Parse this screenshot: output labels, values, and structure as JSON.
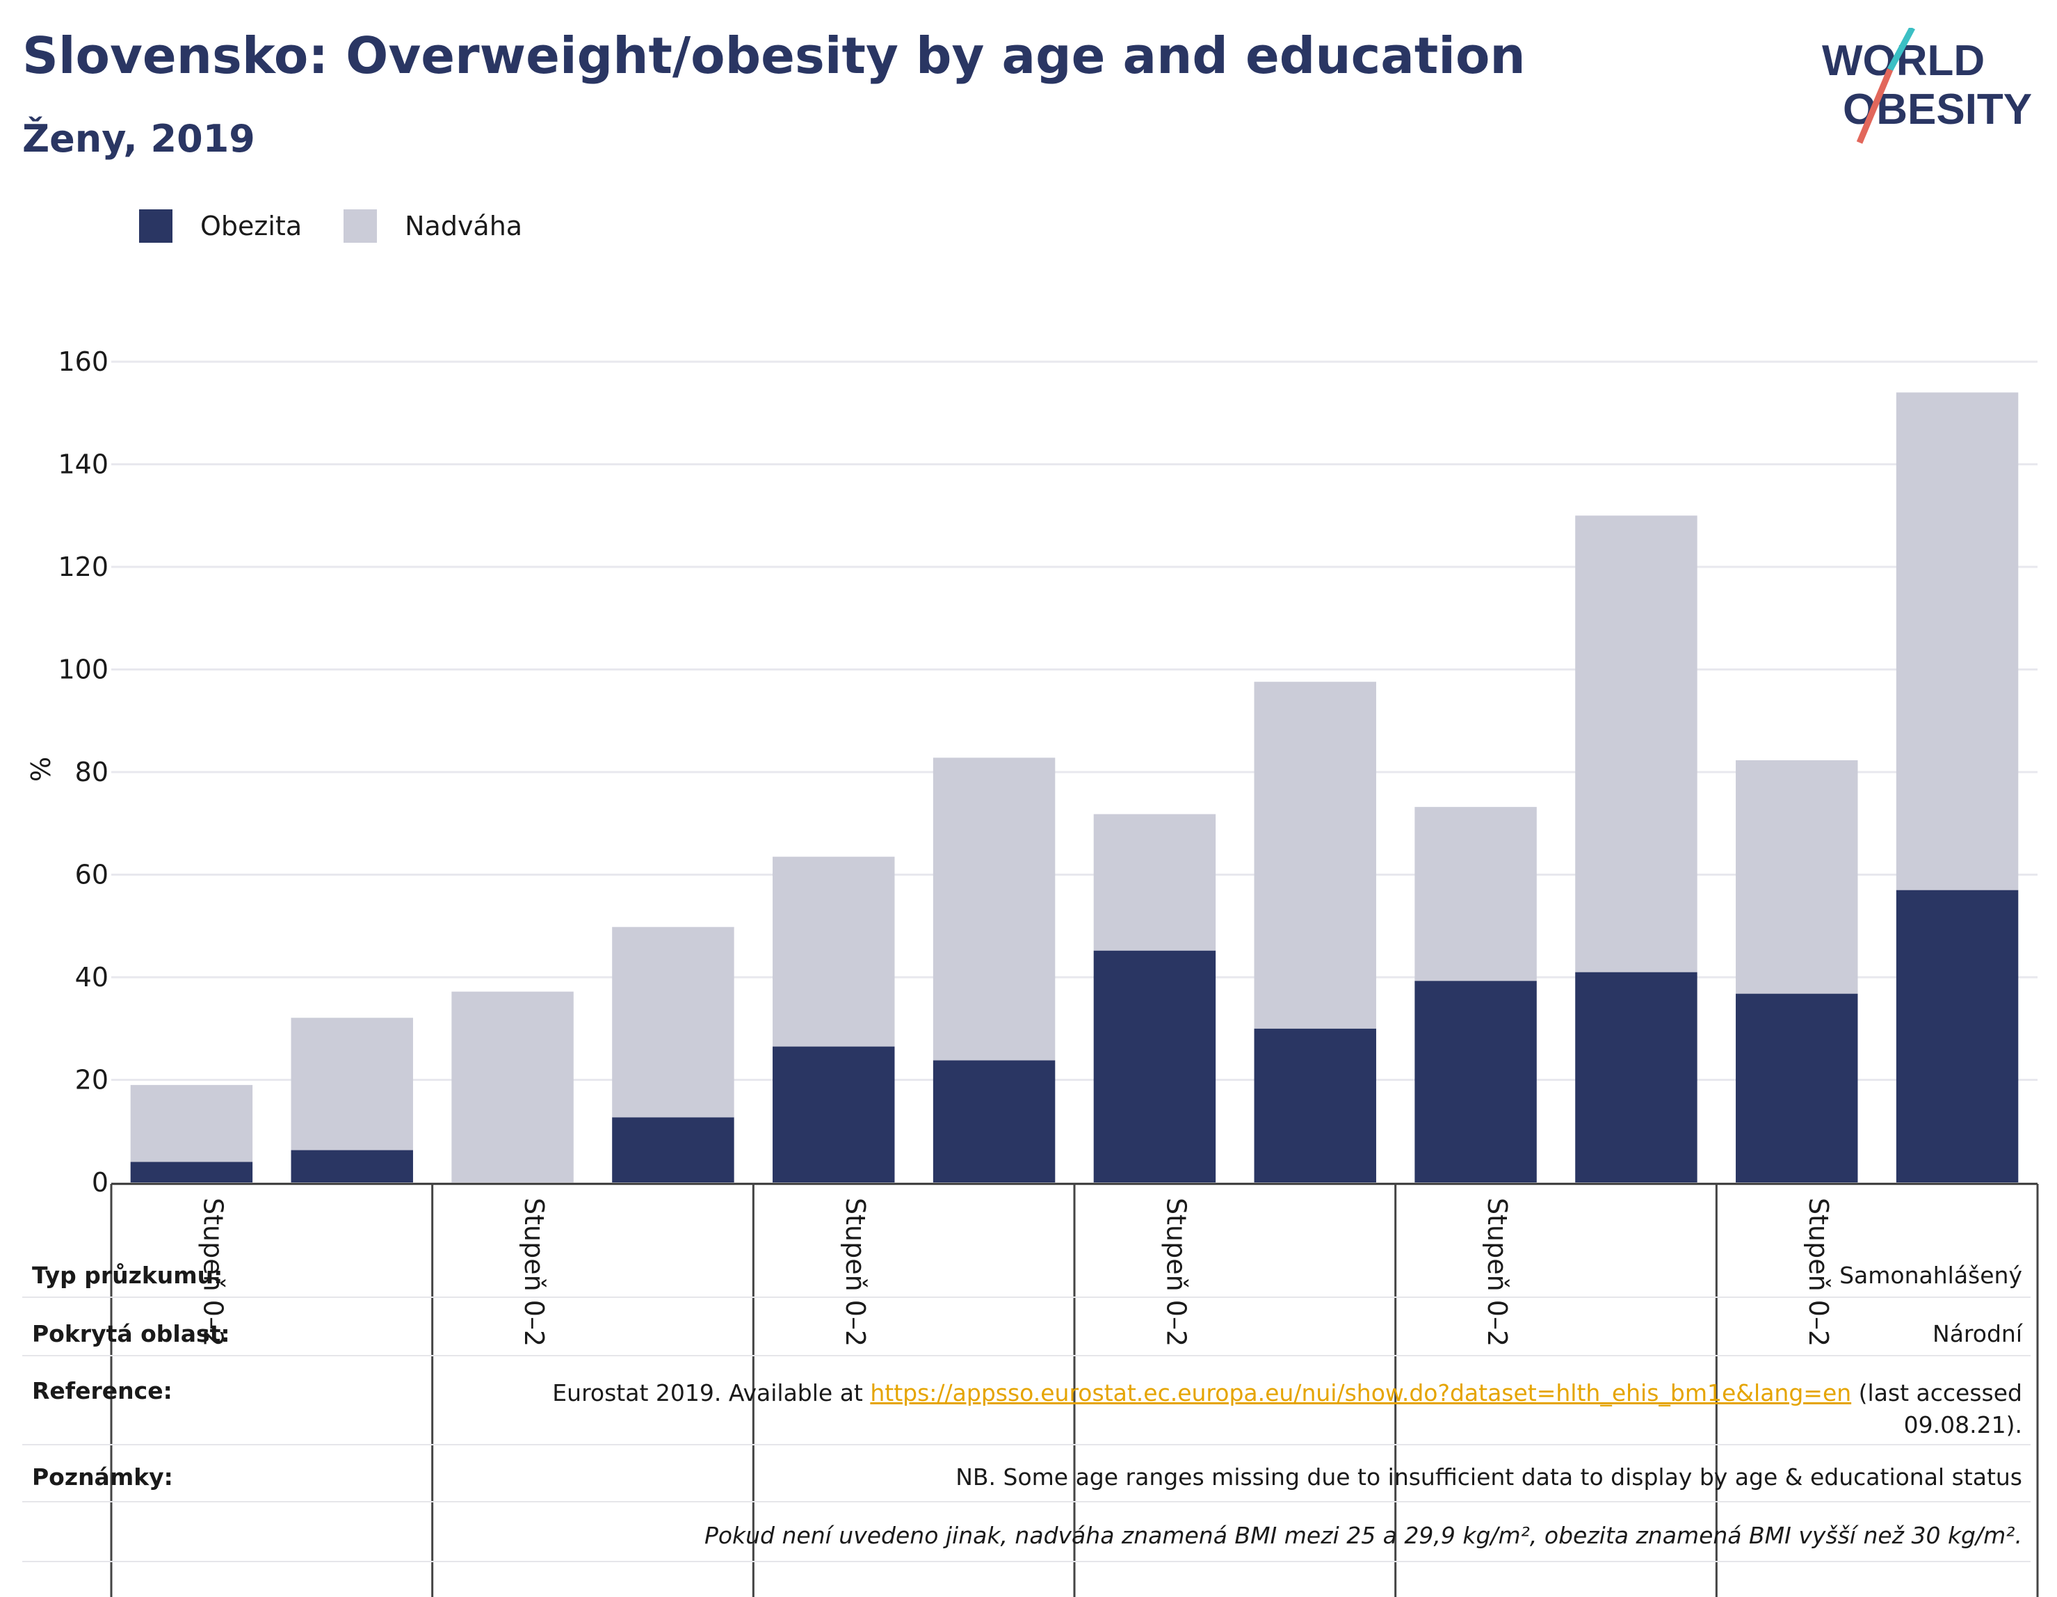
{
  "header": {
    "title": "Slovensko: Overweight/obesity by age and education",
    "subtitle": "Ženy, 2019"
  },
  "logo": {
    "line1": "WORLD",
    "line2": "OBESITY"
  },
  "colors": {
    "obesity": "#2a3663",
    "overweight": "#cbccd8",
    "title": "#2a3663",
    "link": "#e5a400",
    "logo_teal": "#3bbfc4",
    "logo_red": "#e2675b"
  },
  "chart_data": {
    "type": "bar",
    "stacked": true,
    "ylabel": "%",
    "ylim": [
      0,
      160
    ],
    "yticks": [
      0,
      20,
      40,
      60,
      80,
      100,
      120,
      140,
      160
    ],
    "grid": true,
    "legend_position": "top-left",
    "category_labels": [
      "Stupeň 0–2",
      "Stupeň 0–2",
      "Stupeň 0–2",
      "Stupeň 0–2",
      "Stupeň 0–2",
      "Stupeň 0–2"
    ],
    "bar_count": 12,
    "series": [
      {
        "name": "Obezita",
        "values": [
          4,
          6.3,
          0,
          12.7,
          26.5,
          23.8,
          45.2,
          30,
          39.3,
          41,
          36.8,
          57
        ]
      },
      {
        "name": "Nadváha",
        "values": [
          15,
          25.8,
          37.2,
          37.1,
          37,
          59,
          26.6,
          67.6,
          33.9,
          89,
          45.5,
          97
        ]
      }
    ]
  },
  "footer": {
    "survey_type_label": "Typ průzkumu:",
    "survey_type_value": "Samonahlášený",
    "area_label": "Pokrytá oblast:",
    "area_value": "Národní",
    "reference_label": "Reference:",
    "reference_prefix": "Eurostat 2019. Available at ",
    "reference_link": "https://appsso.eurostat.ec.europa.eu/nui/show.do?dataset=hlth_ehis_bm1e&lang=en",
    "reference_suffix": " (last accessed",
    "reference_line2": "09.08.21).",
    "notes_label": "Poznámky:",
    "notes_value": "NB. Some age ranges missing due to insufficient data to display by age & educational status",
    "definition": "Pokud není uvedeno jinak, nadváha znamená BMI mezi 25 a 29,9 kg/m², obezita znamená BMI vyšší než 30 kg/m²."
  }
}
